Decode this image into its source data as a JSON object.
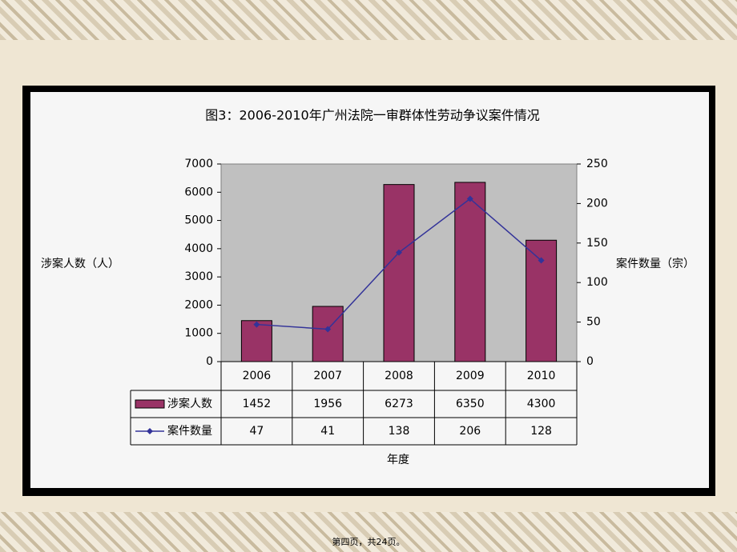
{
  "chart_data": {
    "type": "bar-line",
    "title": "图3：2006-2010年广州法院一审群体性劳动争议案件情况",
    "categories": [
      "2006",
      "2007",
      "2008",
      "2009",
      "2010"
    ],
    "series": [
      {
        "name": "涉案人数",
        "color": "#993366",
        "values": [
          1452,
          1956,
          6273,
          6350,
          4300
        ]
      },
      {
        "name": "案件数量",
        "color": "#333399",
        "axis": "y2",
        "values": [
          47,
          41,
          138,
          206,
          128
        ]
      }
    ],
    "ylim": [
      0,
      7000
    ],
    "yticks": [
      0,
      1000,
      2000,
      3000,
      4000,
      5000,
      6000,
      7000
    ],
    "y2lim": [
      0,
      250
    ],
    "y2ticks": [
      0,
      50,
      100,
      150,
      200,
      250
    ],
    "y_label": "涉案人数（人）",
    "y2_label": "案件数量（宗）",
    "x_label": "年度",
    "footer": "第四页，共24页。"
  }
}
